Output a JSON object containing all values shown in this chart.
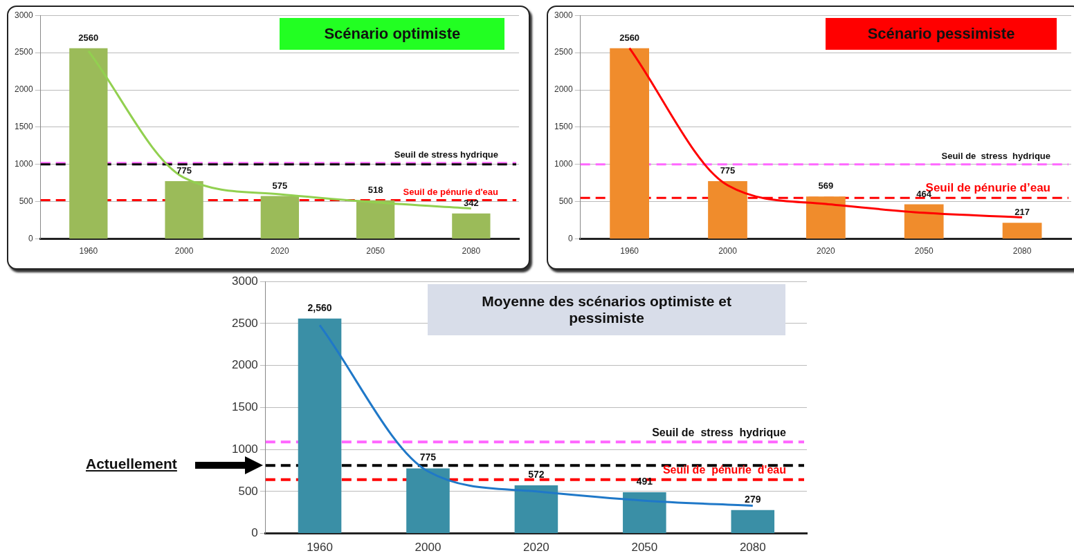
{
  "chart_data": [
    {
      "type": "bar",
      "title": "Scénario optimiste",
      "categories": [
        "1960",
        "2000",
        "2020",
        "2050",
        "2080"
      ],
      "series": [
        {
          "type": "bar",
          "color": "#9bbb59",
          "values": [
            2560,
            775,
            575,
            518,
            342
          ],
          "value_labels": [
            "2560",
            "775",
            "575",
            "518",
            "342"
          ]
        },
        {
          "type": "line",
          "color": "#92d050",
          "values": [
            2520,
            820,
            600,
            490,
            410
          ]
        }
      ],
      "ylim": [
        0,
        3000
      ],
      "yticks": [
        0,
        500,
        1000,
        1500,
        2000,
        2500,
        3000
      ],
      "grid": "y",
      "legend": false,
      "marker": "none",
      "ref_lines": [
        {
          "axis": "y",
          "value": 1020,
          "label": "Seuil de stress hydrique",
          "color": "#ff66ff",
          "line_style": "dashed"
        },
        {
          "axis": "y",
          "value": 1000,
          "color": "#000000",
          "line_style": "dashed"
        },
        {
          "axis": "y",
          "value": 520,
          "label": "Seuil de pénurie d'eau",
          "color": "#ff0000",
          "line_style": "dashed"
        }
      ]
    },
    {
      "type": "bar",
      "title": "Scénario pessimiste",
      "categories": [
        "1960",
        "2000",
        "2020",
        "2050",
        "2080"
      ],
      "series": [
        {
          "type": "bar",
          "color": "#f08c2c",
          "values": [
            2560,
            775,
            569,
            464,
            217
          ],
          "value_labels": [
            "2560",
            "775",
            "569",
            "464",
            "217"
          ]
        },
        {
          "type": "line",
          "color": "#ff0000",
          "values": [
            2560,
            720,
            470,
            350,
            290
          ]
        }
      ],
      "ylim": [
        0,
        3000
      ],
      "yticks": [
        0,
        500,
        1000,
        1500,
        2000,
        2500,
        3000
      ],
      "grid": "y",
      "legend": false,
      "marker": "none",
      "ref_lines": [
        {
          "axis": "y",
          "value": 1000,
          "label": "Seuil de  stress  hydrique",
          "color": "#ff66ff",
          "line_style": "dashed"
        },
        {
          "axis": "y",
          "value": 550,
          "label": "Seuil de pénurie d’eau",
          "color": "#ff0000",
          "line_style": "dashed"
        }
      ]
    },
    {
      "type": "bar",
      "title": "Moyenne des scénarios optimiste et pessimiste",
      "categories": [
        "1960",
        "2000",
        "2020",
        "2050",
        "2080"
      ],
      "series": [
        {
          "type": "bar",
          "color": "#3a8fa6",
          "values": [
            2560,
            775,
            572,
            491,
            279
          ],
          "value_labels": [
            "2,560",
            "775",
            "572",
            "491",
            "279"
          ]
        },
        {
          "type": "line",
          "color": "#1f78c8",
          "values": [
            2480,
            740,
            500,
            390,
            330
          ]
        }
      ],
      "ylim": [
        0,
        3000
      ],
      "yticks": [
        0,
        500,
        1000,
        1500,
        2000,
        2500,
        3000
      ],
      "grid": "y",
      "legend": false,
      "marker": "none",
      "ref_lines": [
        {
          "axis": "y",
          "value": 1090,
          "label": "Seuil de  stress  hydrique",
          "color": "#ff66ff",
          "line_style": "dashed"
        },
        {
          "axis": "y",
          "value": 810,
          "color": "#000000",
          "line_style": "dashed"
        },
        {
          "axis": "y",
          "value": 640,
          "label": "Seuil de  pénurie  d'eau",
          "color": "#ff0000",
          "line_style": "dashed"
        }
      ],
      "annotations": [
        "Actuellement"
      ]
    }
  ]
}
